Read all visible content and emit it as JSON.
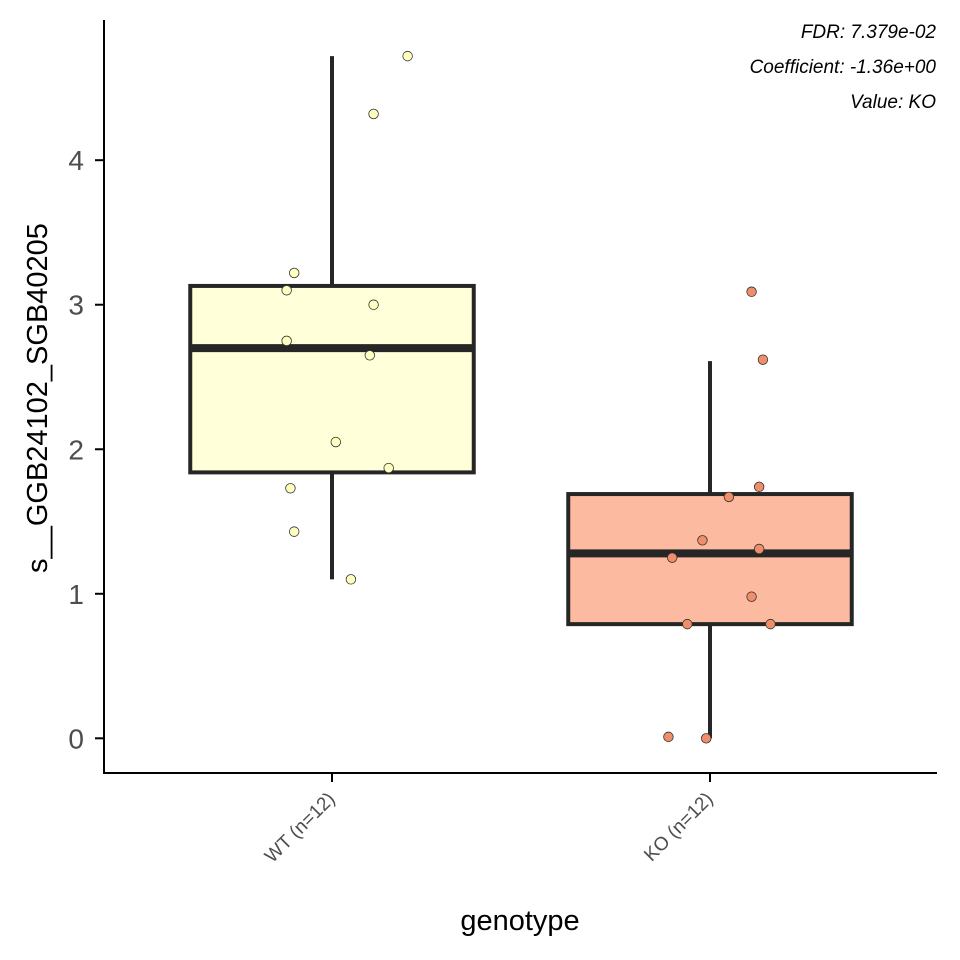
{
  "chart_data": {
    "type": "box",
    "xlabel": "genotype",
    "ylabel": "s__GGB24102_SGB40205",
    "ylim": [
      -0.24,
      4.97
    ],
    "yticks": [
      0,
      1,
      2,
      3,
      4
    ],
    "grid": false,
    "legend": "none",
    "annotations": [
      "FDR: 7.379e-02",
      "Coefficient: -1.36e+00",
      "Value: KO"
    ],
    "groups": [
      {
        "label": "WT (n=12)",
        "fill": "#FFFFD9",
        "point_fill": "#FFFFC0",
        "q1": 1.84,
        "median": 2.7,
        "q3": 3.13,
        "whisker_low": 1.1,
        "whisker_high": 4.72,
        "points": [
          {
            "x_jitter": -0.1,
            "y": 1.43
          },
          {
            "x_jitter": 0.05,
            "y": 1.1
          },
          {
            "x_jitter": -0.11,
            "y": 1.73
          },
          {
            "x_jitter": 0.15,
            "y": 1.87
          },
          {
            "x_jitter": 0.01,
            "y": 2.05
          },
          {
            "x_jitter": 0.1,
            "y": 2.65
          },
          {
            "x_jitter": -0.12,
            "y": 2.75
          },
          {
            "x_jitter": 0.11,
            "y": 3.0
          },
          {
            "x_jitter": -0.12,
            "y": 3.1
          },
          {
            "x_jitter": -0.1,
            "y": 3.22
          },
          {
            "x_jitter": 0.11,
            "y": 4.32
          },
          {
            "x_jitter": 0.2,
            "y": 4.72
          }
        ]
      },
      {
        "label": "KO (n=12)",
        "fill": "#FCBBA1",
        "point_fill": "#F08E69",
        "q1": 0.79,
        "median": 1.28,
        "q3": 1.69,
        "whisker_low": 0.0,
        "whisker_high": 2.61,
        "points": [
          {
            "x_jitter": -0.11,
            "y": 0.01
          },
          {
            "x_jitter": -0.01,
            "y": 0.0
          },
          {
            "x_jitter": -0.06,
            "y": 0.79
          },
          {
            "x_jitter": 0.16,
            "y": 0.79
          },
          {
            "x_jitter": 0.11,
            "y": 0.98
          },
          {
            "x_jitter": -0.1,
            "y": 1.25
          },
          {
            "x_jitter": 0.13,
            "y": 1.31
          },
          {
            "x_jitter": -0.02,
            "y": 1.37
          },
          {
            "x_jitter": 0.05,
            "y": 1.67
          },
          {
            "x_jitter": 0.13,
            "y": 1.74
          },
          {
            "x_jitter": 0.14,
            "y": 2.62
          },
          {
            "x_jitter": 0.11,
            "y": 3.09
          }
        ]
      }
    ]
  }
}
